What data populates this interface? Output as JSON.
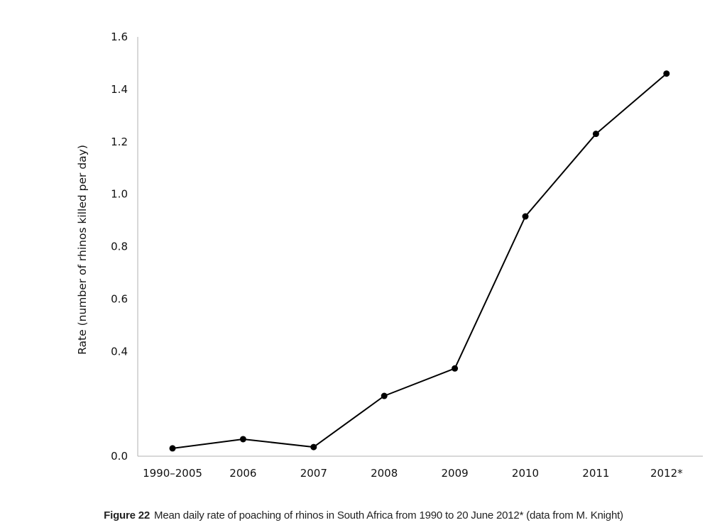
{
  "caption": {
    "label": "Figure 22",
    "text": "Mean daily rate of poaching of rhinos in South Africa from 1990 to 20 June 2012* (data from M. Knight)"
  },
  "chart_data": {
    "type": "line",
    "title": "",
    "xlabel": "",
    "ylabel": "Rate (number of rhinos killed per day)",
    "categories": [
      "1990–2005",
      "2006",
      "2007",
      "2008",
      "2009",
      "2010",
      "2011",
      "2012*"
    ],
    "series": [
      {
        "values": [
          0.03,
          0.065,
          0.035,
          0.23,
          0.335,
          0.915,
          1.23,
          1.46
        ]
      }
    ],
    "yticks": [
      {
        "value": 0.0,
        "label": "0.0"
      },
      {
        "value": 0.4,
        "label": "0.4"
      },
      {
        "value": 0.6,
        "label": "0.6"
      },
      {
        "value": 0.8,
        "label": "0.8"
      },
      {
        "value": 1.0,
        "label": "1.0"
      },
      {
        "value": 1.2,
        "label": "1.2"
      },
      {
        "value": 1.4,
        "label": "1.4"
      },
      {
        "value": 1.6,
        "label": "1.6"
      }
    ],
    "ylim": [
      0,
      1.6
    ],
    "grid": false,
    "legend": "none",
    "line_color": "#000000",
    "axis_color": "#b0b0b0"
  }
}
